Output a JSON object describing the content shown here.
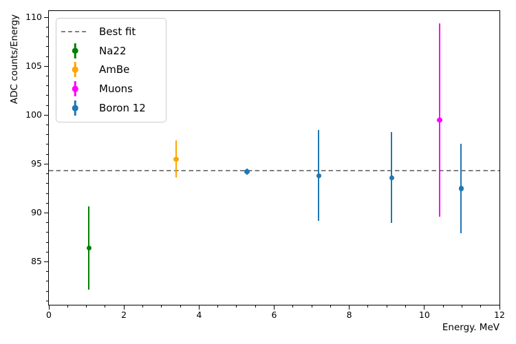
{
  "chart_data": {
    "type": "scatter",
    "subtype": "errorbar",
    "title": "",
    "xlabel": "Energy. MeV",
    "ylabel": "ADC counts/Energy",
    "xlim": [
      0,
      12
    ],
    "ylim": [
      80.6,
      110.65
    ],
    "x_major_ticks": [
      0,
      2,
      4,
      6,
      8,
      10,
      12
    ],
    "x_minor_step": 0.5,
    "y_major_ticks": [
      85,
      90,
      95,
      100,
      105,
      110
    ],
    "y_minor_step": 1,
    "grid": false,
    "best_fit": {
      "label": "Best fit",
      "y": 94.3,
      "color": "#808080",
      "linestyle": "dashed"
    },
    "series": [
      {
        "name": "Na22",
        "color": "#008000",
        "points": [
          {
            "x": 1.07,
            "y": 86.4,
            "yerr": 4.25
          }
        ]
      },
      {
        "name": "AmBe",
        "color": "#ffa500",
        "points": [
          {
            "x": 3.39,
            "y": 95.5,
            "yerr": 1.9
          }
        ]
      },
      {
        "name": "Muons",
        "color": "#ff00ff",
        "points": [
          {
            "x": 10.41,
            "y": 99.5,
            "yerr": 9.9
          }
        ]
      },
      {
        "name": "Boron 12",
        "color": "#1f77b4",
        "points": [
          {
            "x": 5.28,
            "y": 94.2,
            "yerr": 0.3
          },
          {
            "x": 7.19,
            "y": 93.8,
            "yerr": 4.65
          },
          {
            "x": 9.13,
            "y": 93.6,
            "yerr": 4.65
          },
          {
            "x": 10.98,
            "y": 92.5,
            "yerr": 4.6
          }
        ]
      }
    ],
    "legend": {
      "position": "upper-left",
      "entries": [
        {
          "label": "Best fit",
          "marker": "dashed-line",
          "color": "#808080"
        },
        {
          "label": "Na22",
          "marker": "errorbar",
          "color": "#008000"
        },
        {
          "label": "AmBe",
          "marker": "errorbar",
          "color": "#ffa500"
        },
        {
          "label": "Muons",
          "marker": "errorbar",
          "color": "#ff00ff"
        },
        {
          "label": "Boron 12",
          "marker": "errorbar",
          "color": "#1f77b4"
        }
      ]
    }
  }
}
